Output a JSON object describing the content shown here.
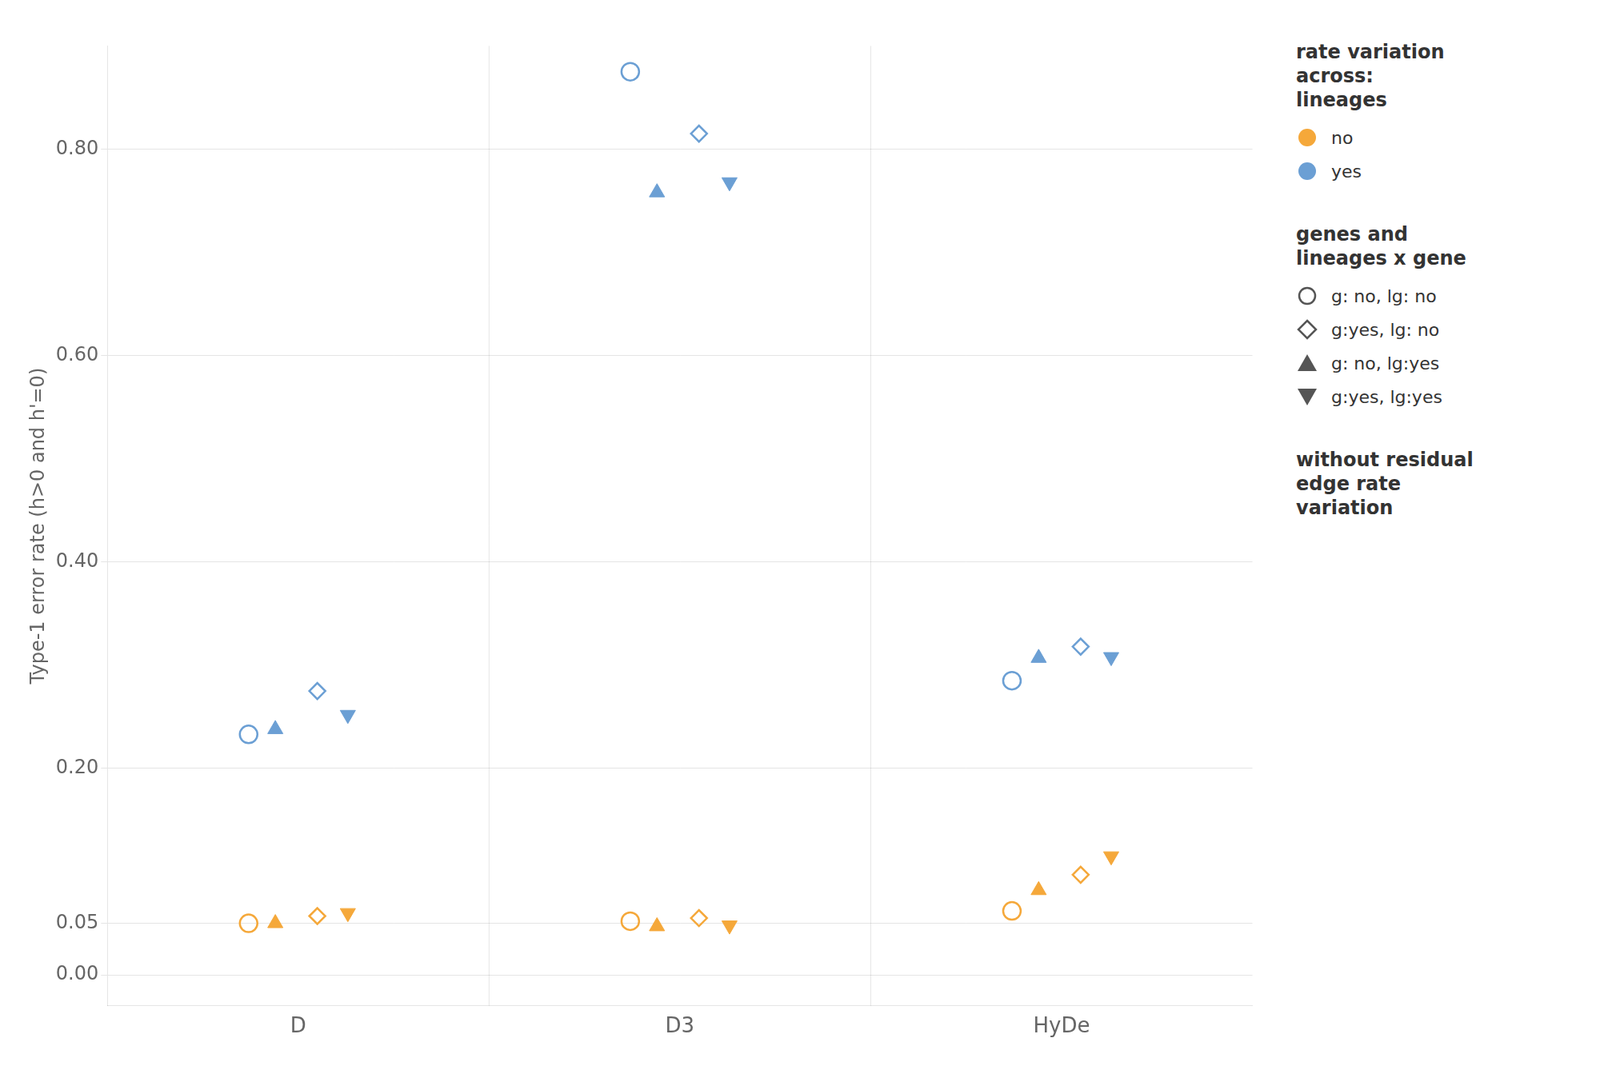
{
  "chart_data": {
    "type": "scatter",
    "categories": [
      "D",
      "D3",
      "HyDe"
    ],
    "ylabel": "Type-1 error rate (h>0 and h'=0)",
    "ylim": [
      -0.03,
      0.9
    ],
    "yticks": [
      {
        "value": 0.0,
        "label": "0.00"
      },
      {
        "value": 0.05,
        "label": "0.05"
      },
      {
        "value": 0.2,
        "label": "0.20"
      },
      {
        "value": 0.4,
        "label": "0.40"
      },
      {
        "value": 0.6,
        "label": "0.60"
      },
      {
        "value": 0.8,
        "label": "0.80"
      }
    ],
    "grid": true,
    "color_legend": {
      "title": "rate variation\nacross:\nlineages",
      "entries": [
        {
          "name": "no",
          "color": "#F5A83A"
        },
        {
          "name": "yes",
          "color": "#6B9FD4"
        }
      ]
    },
    "marker_legend": {
      "title": "genes and\nlineages x gene",
      "color": "#555555",
      "entries": [
        {
          "name": "g: no, lg: no",
          "marker": "open_circle"
        },
        {
          "name": "g:yes, lg: no",
          "marker": "open_diamond"
        },
        {
          "name": "g: no, lg:yes",
          "marker": "filled_triangle_up"
        },
        {
          "name": "g:yes, lg:yes",
          "marker": "filled_triangle_down"
        }
      ]
    },
    "annotation": "without residual\nedge rate\nvariation",
    "series": [
      {
        "lineage": "no",
        "group": "g: no, lg: no",
        "values": [
          0.05,
          0.052,
          0.062
        ]
      },
      {
        "lineage": "no",
        "group": "g: no, lg:yes",
        "values": [
          0.05,
          0.047,
          0.082
        ]
      },
      {
        "lineage": "no",
        "group": "g:yes, lg: no",
        "values": [
          0.057,
          0.055,
          0.097
        ]
      },
      {
        "lineage": "no",
        "group": "g:yes, lg:yes",
        "values": [
          0.06,
          0.048,
          0.115
        ]
      },
      {
        "lineage": "yes",
        "group": "g: no, lg: no",
        "values": [
          0.233,
          0.875,
          0.285
        ]
      },
      {
        "lineage": "yes",
        "group": "g: no, lg:yes",
        "values": [
          0.238,
          0.758,
          0.307
        ]
      },
      {
        "lineage": "yes",
        "group": "g:yes, lg: no",
        "values": [
          0.275,
          0.815,
          0.318
        ]
      },
      {
        "lineage": "yes",
        "group": "g:yes, lg:yes",
        "values": [
          0.252,
          0.768,
          0.308
        ]
      }
    ]
  }
}
